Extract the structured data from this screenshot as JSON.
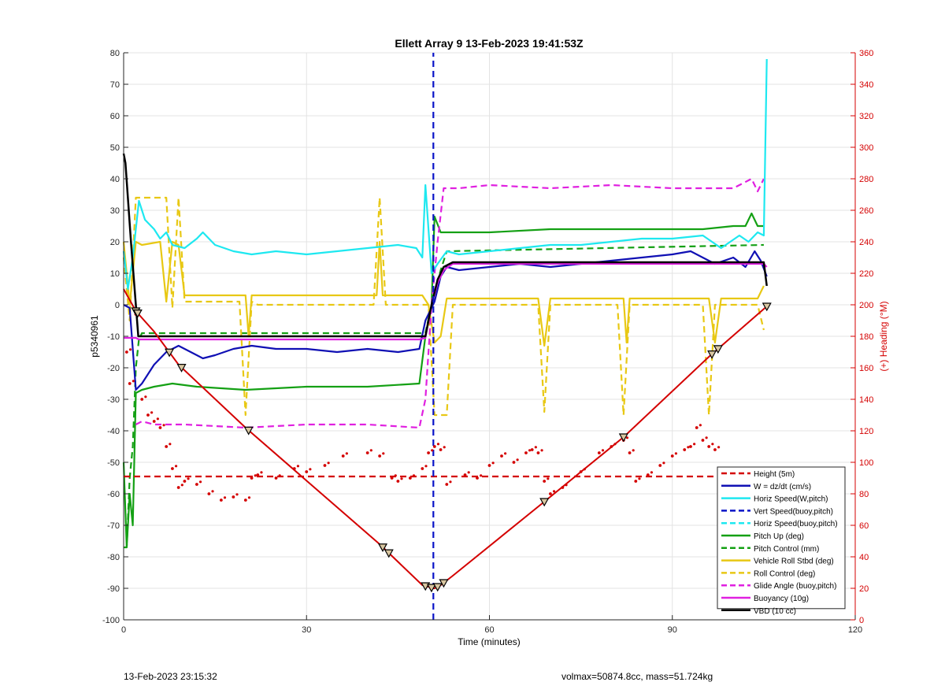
{
  "chart_data": {
    "type": "line",
    "title": "Ellett Array 9 13-Feb-2023 19:41:53Z",
    "xlabel": "Time (minutes)",
    "ylabel": "p5340961",
    "y2label": "(+) Heading (°M)",
    "xlim": [
      0,
      120
    ],
    "ylim": [
      -100,
      80
    ],
    "y2lim": [
      0,
      360
    ],
    "xticks": [
      0,
      30,
      60,
      90,
      120
    ],
    "yticks": [
      -100,
      -90,
      -80,
      -70,
      -60,
      -50,
      -40,
      -30,
      -20,
      -10,
      0,
      10,
      20,
      30,
      40,
      50,
      60,
      70,
      80
    ],
    "y2ticks": [
      0,
      20,
      40,
      60,
      80,
      100,
      120,
      140,
      160,
      180,
      200,
      220,
      240,
      260,
      280,
      300,
      320,
      340,
      360
    ],
    "grid": true,
    "legend_position": "bottom-right",
    "colors": {
      "height": "#d40000",
      "w": "#1010b4",
      "horiz": "#1ee8f0",
      "pitch": "#14a014",
      "roll": "#e8c814",
      "glide": "#e020e0",
      "vbd": "#000000",
      "heading_axis": "#d40000"
    },
    "series": [
      {
        "name": "Height (5m)",
        "color": "#d40000",
        "style": "dashed",
        "x": [
          0,
          106
        ],
        "y": [
          -54.5,
          -54.5
        ]
      },
      {
        "name": "W = dz/dt (cm/s)",
        "color": "#1010b4",
        "style": "solid",
        "x": [
          0,
          1,
          2,
          3,
          5,
          7,
          9,
          11,
          13,
          15,
          18,
          21,
          25,
          30,
          35,
          40,
          45,
          48.5,
          49.5,
          51,
          52,
          53,
          55,
          60,
          65,
          70,
          75,
          80,
          85,
          90,
          93,
          97,
          100,
          102,
          103.5,
          104.5,
          105.5
        ],
        "y": [
          0,
          -1,
          -27,
          -25,
          -19,
          -15,
          -13,
          -15,
          -17,
          -16,
          -14,
          -13,
          -14,
          -14,
          -15,
          -14,
          -15,
          -14,
          -5,
          1,
          9,
          12,
          11,
          12,
          13,
          12,
          13,
          14,
          15,
          16,
          17,
          13,
          15,
          12,
          17,
          14,
          9
        ]
      },
      {
        "name": "Horiz Speed(W,pitch)",
        "color": "#1ee8f0",
        "style": "solid",
        "x": [
          0,
          0.7,
          1.5,
          2.5,
          3.5,
          5,
          6,
          7,
          8,
          10,
          12,
          13,
          15,
          18,
          21,
          25,
          30,
          35,
          40,
          45,
          48,
          49,
          49.5,
          50.5,
          51.5,
          53,
          55,
          60,
          65,
          70,
          75,
          80,
          85,
          90,
          95,
          98,
          101,
          102.5,
          104,
          105,
          105.5
        ],
        "y": [
          17,
          5,
          15,
          33,
          27,
          24,
          21,
          23,
          19,
          18,
          21,
          23,
          19,
          17,
          16,
          17,
          16,
          17,
          18,
          19,
          18,
          15,
          38,
          10,
          13,
          17,
          16,
          17,
          18,
          19,
          19,
          20,
          21,
          21,
          22,
          18,
          22,
          20,
          23,
          22,
          78
        ]
      },
      {
        "name": "Vert Speed(buoy,pitch)",
        "color": "#0a14c8",
        "style": "dashed",
        "x": [
          50.8,
          50.8
        ],
        "y": [
          -100,
          80
        ]
      },
      {
        "name": "Horiz Speed(buoy,pitch)",
        "color": "#1ee8f0",
        "style": "dashed",
        "x": [],
        "y": []
      },
      {
        "name": "Pitch Up (deg)",
        "color": "#14a014",
        "style": "solid",
        "x": [
          0,
          0.5,
          1,
          1.5,
          2,
          3,
          5,
          8,
          12,
          20,
          30,
          40,
          48.5,
          49.5,
          50.5,
          51,
          52,
          55,
          60,
          70,
          80,
          90,
          95,
          100,
          102,
          103,
          104,
          105
        ],
        "y": [
          -50,
          -77,
          -60,
          -70,
          -28,
          -27,
          -26,
          -25,
          -26,
          -27,
          -26,
          -26,
          -25,
          -10,
          0,
          28,
          23,
          23,
          23,
          24,
          24,
          24,
          24,
          25,
          25,
          29,
          25,
          25
        ]
      },
      {
        "name": "Pitch Control (mm)",
        "color": "#14a014",
        "style": "dashed",
        "x": [
          0,
          0.5,
          1,
          1.5,
          2,
          2.5,
          3,
          48.5,
          49.5,
          50.5,
          52,
          53,
          105
        ],
        "y": [
          -77,
          -77,
          -55,
          -45,
          -20,
          -11,
          -9,
          -9,
          -9,
          0,
          11,
          17,
          19
        ]
      },
      {
        "name": "Vehicle Roll Stbd (deg)",
        "color": "#e8c814",
        "style": "solid",
        "x": [
          0,
          1,
          2,
          3,
          6,
          7,
          8,
          9,
          10,
          15,
          20,
          20.5,
          21,
          30,
          41.5,
          42,
          42.5,
          49,
          50,
          51,
          52,
          53,
          55,
          68,
          69,
          70,
          82,
          82.5,
          83,
          96,
          97,
          98,
          104,
          105
        ],
        "y": [
          20,
          0,
          20,
          19,
          20,
          1,
          20,
          19,
          3,
          3,
          3,
          -10,
          3,
          3,
          3,
          20,
          3,
          3,
          0,
          -12,
          -10,
          2,
          2,
          2,
          -13,
          2,
          2,
          -12,
          2,
          2,
          -12,
          2,
          2,
          6
        ]
      },
      {
        "name": "Roll Control (deg)",
        "color": "#e8c814",
        "style": "dashed",
        "x": [
          0,
          1,
          2,
          3,
          7,
          8,
          9,
          10,
          19,
          20,
          21,
          22,
          41,
          42,
          43,
          50,
          51,
          52,
          53,
          54,
          68,
          69,
          70,
          81,
          82,
          83,
          95,
          96,
          97,
          104,
          105
        ],
        "y": [
          15,
          -5,
          34,
          34,
          34,
          -1,
          34,
          1,
          1,
          -35,
          1,
          0,
          0,
          34,
          0,
          0,
          -35,
          -35,
          -35,
          0,
          0,
          -34,
          0,
          0,
          -35,
          0,
          0,
          -35,
          0,
          0,
          -8
        ]
      },
      {
        "name": "Glide Angle (buoy,pitch)",
        "color": "#e020e0",
        "style": "dashed",
        "x": [
          2,
          3,
          5,
          10,
          20,
          30,
          40,
          48.5,
          49.5,
          50.5,
          51.5,
          52.5,
          55,
          60,
          70,
          80,
          90,
          100,
          103,
          104,
          105
        ],
        "y": [
          -38,
          -37,
          -38,
          -38,
          -39,
          -38,
          -38,
          -39,
          -30,
          0,
          20,
          37,
          37,
          38,
          37,
          38,
          37,
          37,
          40,
          36,
          40
        ]
      },
      {
        "name": "Buoyancy (10g)",
        "color": "#e020e0",
        "style": "solid",
        "x": [
          0,
          2,
          2.5,
          48.5,
          49.5,
          50.5,
          51.5,
          52.5,
          54,
          105,
          105.5
        ],
        "y": [
          -10.5,
          -10.5,
          -11,
          -11,
          -10.5,
          0,
          7,
          11,
          13,
          13,
          12
        ]
      },
      {
        "name": "VBD (10 cc)",
        "color": "#000000",
        "style": "solid",
        "x": [
          0,
          0.3,
          1.2,
          2,
          2.4,
          48.5,
          49.5,
          50.5,
          51.5,
          52.5,
          54,
          105,
          105.5
        ],
        "y": [
          48,
          45,
          20,
          0,
          -10,
          -10,
          -10,
          0,
          8,
          12,
          13.5,
          13.5,
          6
        ]
      }
    ],
    "heading_line": {
      "name": "Heading",
      "color": "#d40000",
      "x": [
        0,
        2,
        5,
        9,
        20,
        42,
        49,
        51,
        52,
        54,
        69,
        82,
        96,
        105.5
      ],
      "y": [
        210,
        196,
        183,
        162,
        122,
        48,
        22,
        20,
        22,
        28,
        75,
        116,
        167,
        199
      ]
    },
    "heading_markers_x": [
      2,
      2.3,
      7.5,
      9.5,
      20.5,
      42.5,
      43.5,
      49.5,
      50.5,
      51.5,
      52.5,
      69,
      82,
      96.5,
      97.5,
      105.5
    ],
    "height_dots": {
      "color": "#d40000",
      "x": [
        0.5,
        1,
        2,
        3,
        4,
        5,
        6,
        7,
        8,
        9,
        10,
        12,
        14,
        16,
        18,
        20,
        21,
        22,
        25,
        28,
        30,
        33,
        36,
        40,
        42,
        44,
        45,
        47,
        49,
        50,
        51,
        52,
        53,
        56,
        58,
        60,
        62,
        64,
        66,
        67,
        68,
        69,
        70,
        72,
        75,
        78,
        80,
        82,
        83,
        84,
        86,
        88,
        90,
        92,
        93,
        94,
        95,
        96,
        97,
        98,
        100,
        102
      ],
      "y": [
        -15,
        -25,
        -3,
        -30,
        -35,
        -37,
        -39,
        -45,
        -52,
        -58,
        -56,
        -57,
        -60,
        -62,
        -61,
        -62,
        -55,
        -54,
        -55,
        -52,
        -53,
        -51,
        -48,
        -47,
        -48,
        -55,
        -56,
        -55,
        -52,
        -47,
        -45,
        -46,
        -57,
        -54,
        -55,
        -51,
        -48,
        -50,
        -47,
        -46,
        -47,
        -56,
        -60,
        -58,
        -53,
        -47,
        -45,
        -43,
        -47,
        -56,
        -54,
        -51,
        -48,
        -46,
        -45,
        -39,
        -43,
        -45,
        -46,
        -53,
        -56,
        -55
      ]
    }
  },
  "footer": {
    "left": "13-Feb-2023 23:15:32",
    "right": "volmax=50874.8cc, mass=51.724kg"
  }
}
